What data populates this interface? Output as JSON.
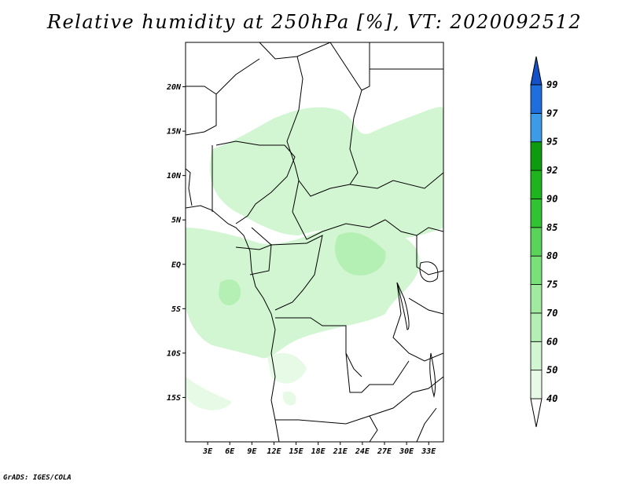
{
  "title": "Relative humidity at 250hPa [%], VT: 2020092512",
  "credit": "GrADS: IGES/COLA",
  "map": {
    "lon_range": [
      0,
      35
    ],
    "lat_range": [
      -20,
      25
    ],
    "x_ticks": [
      "3E",
      "6E",
      "9E",
      "12E",
      "15E",
      "18E",
      "21E",
      "24E",
      "27E",
      "30E",
      "33E"
    ],
    "y_ticks": [
      "20N",
      "15N",
      "10N",
      "5N",
      "EQ",
      "5S",
      "10S",
      "15S"
    ]
  },
  "colorbar": {
    "labels": [
      "40",
      "50",
      "60",
      "70",
      "75",
      "80",
      "85",
      "90",
      "92",
      "95",
      "97",
      "99"
    ],
    "colors": [
      "#ffffff",
      "#e6fae6",
      "#d2f5d2",
      "#b4f0b4",
      "#a0eba0",
      "#78e178",
      "#5ad35a",
      "#32c332",
      "#1eb41e",
      "#0f9b0f",
      "#3c9be6",
      "#1e6edc",
      "#1450c8"
    ]
  }
}
